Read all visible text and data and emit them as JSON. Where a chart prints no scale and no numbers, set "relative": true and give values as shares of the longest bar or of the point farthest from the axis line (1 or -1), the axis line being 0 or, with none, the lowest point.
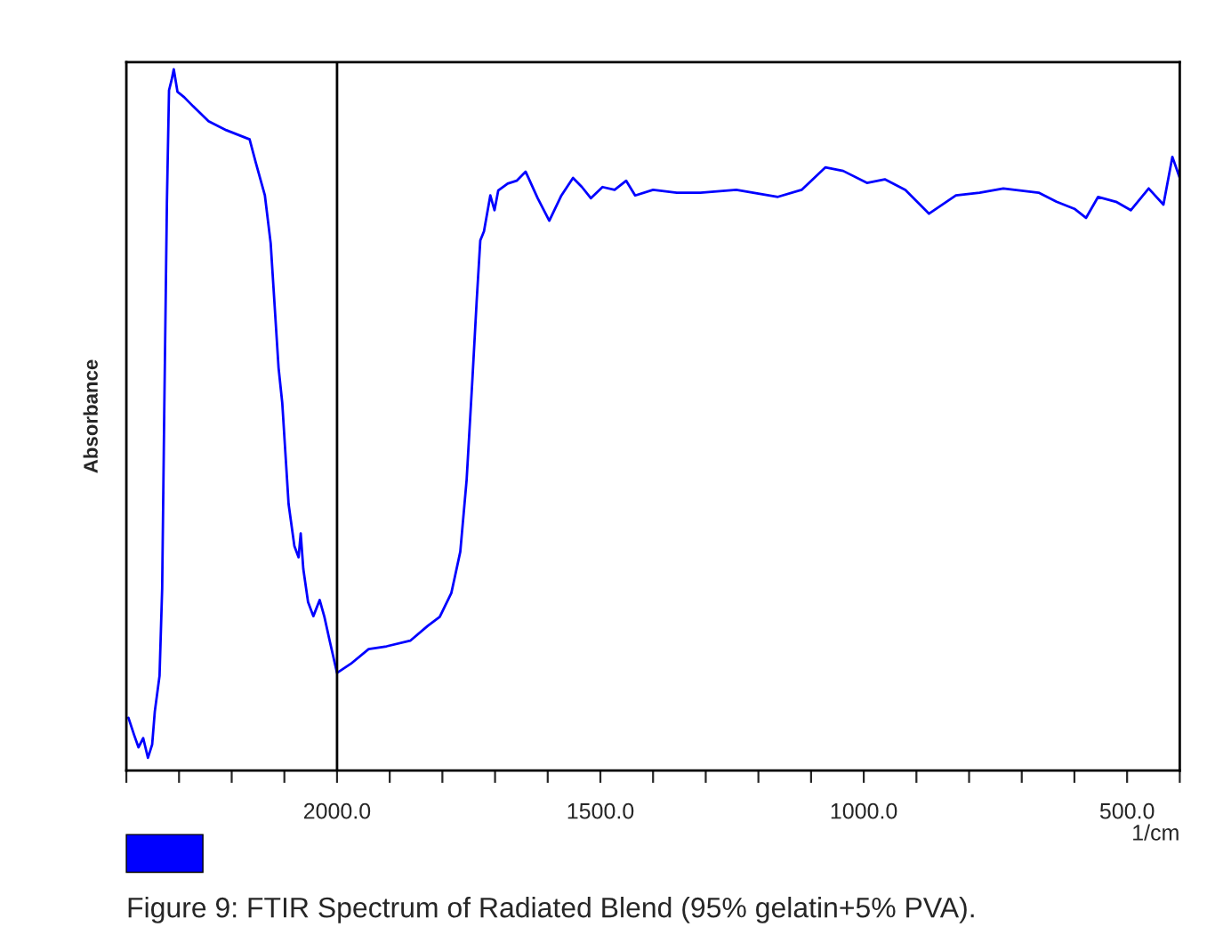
{
  "chart_data": {
    "type": "line",
    "relative": true,
    "xlabel": "1/cm",
    "ylabel": "Absorbance",
    "annotations": [
      "Figure 9: FTIR Spectrum of Radiated Blend (95% gelatin+5% PVA)."
    ],
    "xlim": [
      2400,
      400
    ],
    "xticks": [
      {
        "value": 2400,
        "label": null
      },
      {
        "value": 2300,
        "label": null
      },
      {
        "value": 2200,
        "label": null
      },
      {
        "value": 2100,
        "label": null
      },
      {
        "value": 2000,
        "label": "2000.0"
      },
      {
        "value": 1900,
        "label": null
      },
      {
        "value": 1800,
        "label": null
      },
      {
        "value": 1700,
        "label": null
      },
      {
        "value": 1600,
        "label": null
      },
      {
        "value": 1500,
        "label": "1500.0"
      },
      {
        "value": 1400,
        "label": null
      },
      {
        "value": 1300,
        "label": null
      },
      {
        "value": 1200,
        "label": null
      },
      {
        "value": 1100,
        "label": null
      },
      {
        "value": 1000,
        "label": "1000.0"
      },
      {
        "value": 900,
        "label": null
      },
      {
        "value": 800,
        "label": null
      },
      {
        "value": 700,
        "label": null
      },
      {
        "value": 600,
        "label": null
      },
      {
        "value": 500,
        "label": "500.0"
      },
      {
        "value": 400,
        "label": null
      }
    ],
    "grid": false,
    "legend": false,
    "ref_lines": [
      {
        "axis": "x",
        "value": 2000,
        "color": "#000000"
      }
    ],
    "series": [
      {
        "color": "#0000ff",
        "x": [
          2396,
          2385,
          2377,
          2368,
          2359,
          2351,
          2346,
          2337,
          2332,
          2328,
          2323,
          2319,
          2314,
          2310,
          2303,
          2290,
          2273,
          2244,
          2210,
          2166,
          2154,
          2137,
          2126,
          2111,
          2104,
          2092,
          2081,
          2073,
          2069,
          2064,
          2055,
          2045,
          2033,
          2024,
          2014,
          2000,
          1974,
          1940,
          1906,
          1861,
          1828,
          1805,
          1783,
          1766,
          1754,
          1743,
          1735,
          1728,
          1721,
          1709,
          1701,
          1694,
          1676,
          1659,
          1642,
          1619,
          1597,
          1574,
          1552,
          1535,
          1518,
          1496,
          1473,
          1451,
          1434,
          1400,
          1355,
          1310,
          1242,
          1163,
          1118,
          1073,
          1039,
          994,
          960,
          921,
          876,
          825,
          780,
          735,
          668,
          634,
          600,
          578,
          555,
          521,
          493,
          459,
          431,
          414,
          400
        ],
        "values": [
          0.075,
          0.05,
          0.033,
          0.046,
          0.018,
          0.037,
          0.084,
          0.135,
          0.26,
          0.515,
          0.81,
          0.97,
          0.985,
          1.0,
          0.968,
          0.96,
          0.947,
          0.926,
          0.913,
          0.9,
          0.866,
          0.82,
          0.752,
          0.574,
          0.524,
          0.38,
          0.32,
          0.304,
          0.338,
          0.287,
          0.24,
          0.22,
          0.243,
          0.219,
          0.185,
          0.139,
          0.152,
          0.173,
          0.177,
          0.185,
          0.206,
          0.219,
          0.253,
          0.312,
          0.414,
          0.558,
          0.668,
          0.756,
          0.769,
          0.82,
          0.799,
          0.827,
          0.837,
          0.841,
          0.854,
          0.816,
          0.784,
          0.82,
          0.845,
          0.832,
          0.816,
          0.832,
          0.828,
          0.841,
          0.82,
          0.828,
          0.824,
          0.824,
          0.828,
          0.818,
          0.828,
          0.86,
          0.855,
          0.838,
          0.843,
          0.828,
          0.794,
          0.82,
          0.824,
          0.83,
          0.824,
          0.811,
          0.801,
          0.788,
          0.818,
          0.811,
          0.799,
          0.83,
          0.807,
          0.875,
          0.845
        ]
      }
    ]
  }
}
